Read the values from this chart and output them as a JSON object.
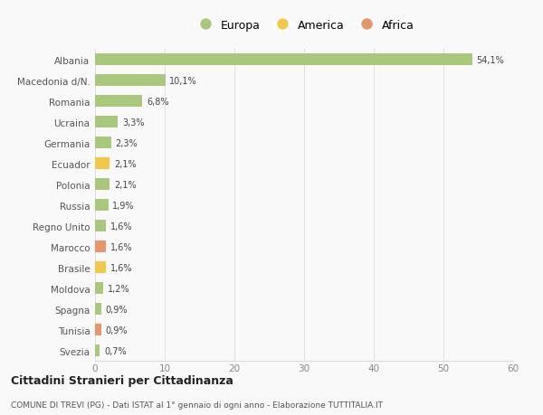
{
  "categories": [
    "Albania",
    "Macedonia d/N.",
    "Romania",
    "Ucraina",
    "Germania",
    "Ecuador",
    "Polonia",
    "Russia",
    "Regno Unito",
    "Marocco",
    "Brasile",
    "Moldova",
    "Spagna",
    "Tunisia",
    "Svezia"
  ],
  "values": [
    54.1,
    10.1,
    6.8,
    3.3,
    2.3,
    2.1,
    2.1,
    1.9,
    1.6,
    1.6,
    1.6,
    1.2,
    0.9,
    0.9,
    0.7
  ],
  "labels": [
    "54,1%",
    "10,1%",
    "6,8%",
    "3,3%",
    "2,3%",
    "2,1%",
    "2,1%",
    "1,9%",
    "1,6%",
    "1,6%",
    "1,6%",
    "1,2%",
    "0,9%",
    "0,9%",
    "0,7%"
  ],
  "continents": [
    "Europa",
    "Europa",
    "Europa",
    "Europa",
    "Europa",
    "America",
    "Europa",
    "Europa",
    "Europa",
    "Africa",
    "America",
    "Europa",
    "Europa",
    "Africa",
    "Europa"
  ],
  "colors": {
    "Europa": "#a8c87c",
    "America": "#f2c84b",
    "Africa": "#e8956a"
  },
  "xlim": [
    0,
    60
  ],
  "xticks": [
    0,
    10,
    20,
    30,
    40,
    50,
    60
  ],
  "title": "Cittadini Stranieri per Cittadinanza",
  "subtitle": "COMUNE DI TREVI (PG) - Dati ISTAT al 1° gennaio di ogni anno - Elaborazione TUTTITALIA.IT",
  "background_color": "#f9f9f9",
  "grid_color": "#e0e0e0",
  "bar_height": 0.55
}
